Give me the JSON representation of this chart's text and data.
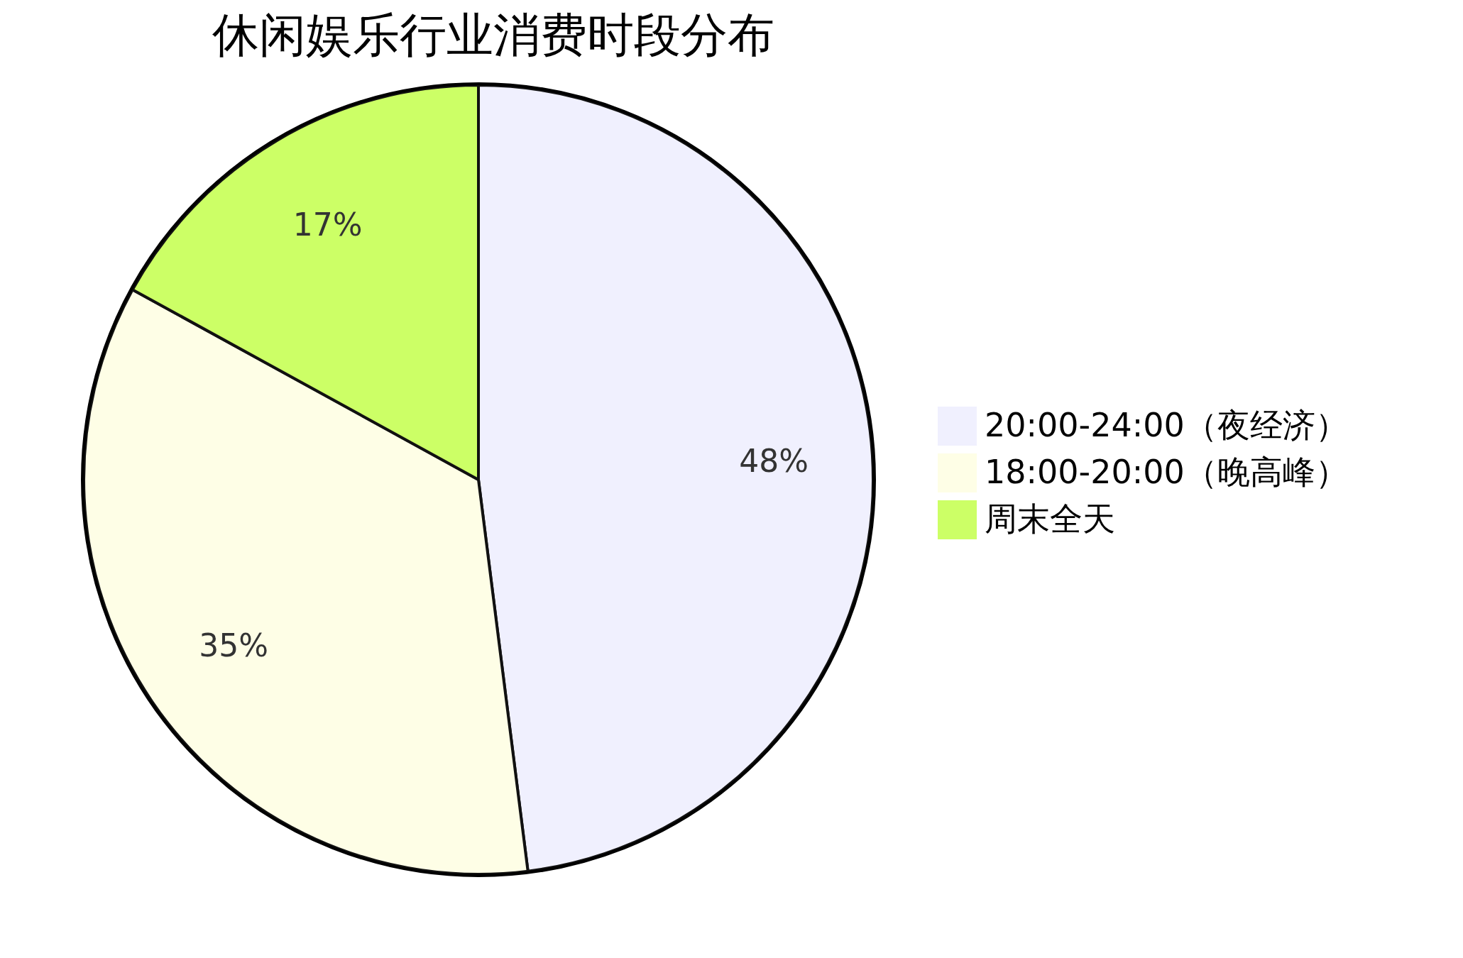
{
  "chart_data": {
    "type": "pie",
    "title": "休闲娱乐行业消费时段分布",
    "categories": [
      "20:00-24:00（夜经济）",
      "18:00-20:00（晚高峰）",
      "周末全天"
    ],
    "values": [
      48,
      35,
      17
    ],
    "colors": [
      "#f0f0fe",
      "#fefee6",
      "#ccff66"
    ],
    "value_labels": [
      "48%",
      "35%",
      "17%"
    ],
    "legend": "right"
  }
}
